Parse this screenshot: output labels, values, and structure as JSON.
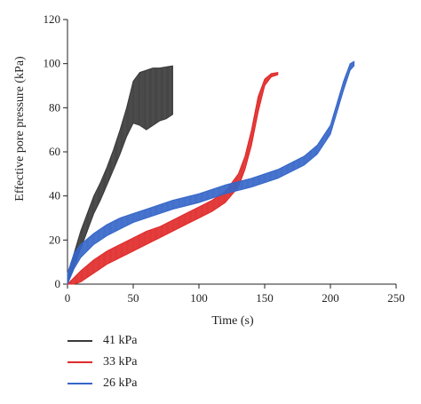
{
  "chart_data": {
    "type": "line",
    "xlabel": "Time (s)",
    "ylabel": "Effective pore pressure (kPa)",
    "xlim": [
      0,
      250
    ],
    "ylim": [
      0,
      120
    ],
    "xticks": [
      "0",
      "50",
      "100",
      "150",
      "200",
      "250"
    ],
    "yticks": [
      "0",
      "20",
      "40",
      "60",
      "80",
      "100",
      "120"
    ],
    "grid": false,
    "legend_position": "bottom-left, below plot",
    "series": [
      {
        "name": "41 kPa",
        "color": "#3a3a3a",
        "x": [
          0,
          5,
          10,
          15,
          20,
          25,
          30,
          35,
          40,
          45,
          50,
          55,
          60,
          65,
          70,
          75,
          80
        ],
        "upper": [
          2,
          14,
          24,
          32,
          40,
          46,
          53,
          61,
          70,
          80,
          92,
          96,
          97,
          98,
          98,
          98.5,
          99
        ],
        "lower": [
          0,
          8,
          16,
          24,
          32,
          38,
          45,
          52,
          59,
          67,
          73,
          72,
          70,
          72,
          74,
          75,
          77
        ]
      },
      {
        "name": "33 kPa",
        "color": "#e02a2a",
        "x": [
          0,
          5,
          10,
          20,
          30,
          40,
          50,
          60,
          70,
          80,
          90,
          100,
          110,
          120,
          130,
          135,
          140,
          145,
          150,
          155,
          160
        ],
        "upper": [
          0,
          3,
          6,
          11,
          15,
          18,
          21,
          24,
          26,
          29,
          32,
          35,
          38,
          42,
          50,
          58,
          70,
          85,
          93,
          95.5,
          96
        ],
        "lower": [
          0,
          0,
          1,
          5,
          9,
          12,
          15,
          18,
          21,
          24,
          27,
          30,
          33,
          37,
          44,
          52,
          63,
          78,
          90,
          94,
          95
        ]
      },
      {
        "name": "26 kPa",
        "color": "#3566c8",
        "x": [
          0,
          5,
          10,
          20,
          30,
          40,
          50,
          60,
          80,
          100,
          120,
          140,
          160,
          180,
          190,
          200,
          205,
          210,
          215,
          218
        ],
        "upper": [
          5,
          14,
          18,
          23,
          27,
          30,
          32,
          34,
          38,
          41,
          45,
          48,
          52,
          58,
          63,
          72,
          82,
          92,
          100,
          101
        ],
        "lower": [
          0,
          7,
          12,
          18,
          22,
          25,
          28,
          30,
          34,
          37,
          41,
          44,
          48,
          54,
          59,
          68,
          78,
          88,
          97,
          99
        ]
      }
    ]
  }
}
